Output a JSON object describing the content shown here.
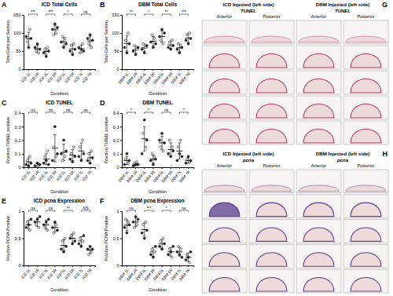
{
  "chart_data": [
    {
      "type": "dot",
      "panel_label": "A",
      "title": "ICD Total Cells",
      "y_label": "Total Cells per Section",
      "x_label": "Condition",
      "categories": [
        "ICD 1L",
        "ICD 1R",
        "ICD 3L",
        "ICD 3R",
        "ICD 5L",
        "ICD 5R",
        "ICD 7L",
        "ICD 7R"
      ],
      "values": [
        [
          90,
          75,
          60,
          110,
          85
        ],
        [
          60,
          50,
          70,
          45,
          55
        ],
        [
          45,
          55,
          35,
          60,
          50
        ],
        [
          110,
          95,
          125,
          100,
          115
        ],
        [
          75,
          90,
          60,
          85,
          70
        ],
        [
          50,
          65,
          40,
          70,
          55
        ],
        [
          60,
          45,
          55,
          70,
          50
        ],
        [
          85,
          70,
          95,
          60,
          80
        ]
      ],
      "mean": [
        84,
        56,
        49,
        109,
        76,
        56,
        56,
        78
      ],
      "sd": [
        18,
        10,
        10,
        12,
        12,
        12,
        10,
        13
      ],
      "color": "#222222",
      "marker": "circle",
      "ylim": [
        0,
        150
      ],
      "yticks": [
        0,
        50,
        100,
        150
      ],
      "annotations": [
        {
          "text": "***",
          "from": 0,
          "to": 1
        },
        {
          "text": "***",
          "from": 2,
          "to": 3
        },
        {
          "text": "*",
          "from": 4,
          "to": 5
        },
        {
          "text": "ns",
          "from": 6,
          "to": 7
        }
      ]
    },
    {
      "type": "dot",
      "panel_label": "B",
      "title": "DBM Total Cells",
      "y_label": "Total Cells per Section",
      "x_label": "Condition",
      "categories": [
        "DBM 1L",
        "DBM 1R",
        "DBM 3L",
        "DBM 3R",
        "DBM 5L",
        "DBM 5R",
        "DBM 7L",
        "DBM 7R"
      ],
      "values": [
        [
          60,
          80,
          45,
          100,
          70
        ],
        [
          50,
          65,
          40,
          55,
          60
        ],
        [
          55,
          70,
          45,
          60,
          65
        ],
        [
          75,
          95,
          60,
          85,
          70
        ],
        [
          90,
          80,
          110,
          70,
          100
        ],
        [
          60,
          75,
          55,
          80,
          65
        ],
        [
          55,
          70,
          45,
          65,
          60
        ],
        [
          80,
          95,
          70,
          100,
          85
        ]
      ],
      "mean": [
        71,
        54,
        59,
        77,
        90,
        67,
        59,
        86
      ],
      "sd": [
        21,
        10,
        10,
        13,
        16,
        10,
        10,
        12
      ],
      "color": "#222222",
      "marker": "circle",
      "ylim": [
        0,
        150
      ],
      "yticks": [
        0,
        50,
        100,
        150
      ],
      "annotations": [
        {
          "text": "**",
          "from": 0,
          "to": 1
        },
        {
          "text": "*",
          "from": 2,
          "to": 3
        },
        {
          "text": "**",
          "from": 4,
          "to": 5
        },
        {
          "text": "***",
          "from": 6,
          "to": 7
        }
      ]
    },
    {
      "type": "dot",
      "panel_label": "C",
      "title": "ICD TUNEL",
      "y_label": "Fraction TUNEL positive",
      "x_label": "Condition",
      "categories": [
        "ICD 1L",
        "ICD 1R",
        "ICD 3L",
        "ICD 3R",
        "ICD 5L",
        "ICD 5R",
        "ICD 7L",
        "ICD 7R"
      ],
      "values": [
        [
          0.02,
          0.05,
          0.01,
          0.08,
          0.03
        ],
        [
          0.01,
          0.02,
          0.03,
          0.01,
          0.02
        ],
        [
          0.03,
          0.08,
          0.05,
          0.12,
          0.02
        ],
        [
          0.05,
          0.15,
          0.3,
          0.08,
          0.1
        ],
        [
          0.1,
          0.05,
          0.2,
          0.08,
          0.12
        ],
        [
          0.06,
          0.1,
          0.04,
          0.15,
          0.08
        ],
        [
          0.08,
          0.15,
          0.05,
          0.2,
          0.1
        ],
        [
          0.05,
          0.1,
          0.03,
          0.12,
          0.07
        ]
      ],
      "mean": [
        0.04,
        0.02,
        0.06,
        0.14,
        0.11,
        0.09,
        0.12,
        0.07
      ],
      "sd": [
        0.03,
        0.01,
        0.04,
        0.1,
        0.06,
        0.04,
        0.06,
        0.04
      ],
      "color": "#222222",
      "marker": "circle",
      "ylim": [
        0,
        0.4
      ],
      "yticks": [
        0,
        0.1,
        0.2,
        0.3,
        0.4
      ],
      "annotations": [
        {
          "text": "ns",
          "from": 0,
          "to": 1
        },
        {
          "text": "ns",
          "from": 2,
          "to": 3
        },
        {
          "text": "ns",
          "from": 4,
          "to": 5
        },
        {
          "text": "ns",
          "from": 6,
          "to": 7
        }
      ]
    },
    {
      "type": "dot",
      "panel_label": "D",
      "title": "DBM TUNEL",
      "y_label": "Fraction TUNEL positive",
      "x_label": "Condition",
      "categories": [
        "DBM 1L",
        "DBM 1R",
        "DBM 3L",
        "DBM 3R",
        "DBM 5L",
        "DBM 5R",
        "DBM 7L",
        "DBM 7R"
      ],
      "values": [
        [
          0.02,
          0.06,
          0.1,
          0.03,
          0.05
        ],
        [
          0.01,
          0.03,
          0.02,
          0.04,
          0.02
        ],
        [
          0.1,
          0.25,
          0.35,
          0.15,
          0.2
        ],
        [
          0.05,
          0.1,
          0.02,
          0.08,
          0.06
        ],
        [
          0.2,
          0.15,
          0.25,
          0.12,
          0.18
        ],
        [
          0.1,
          0.2,
          0.08,
          0.15,
          0.12
        ],
        [
          0.05,
          0.15,
          0.1,
          0.2,
          0.08
        ],
        [
          0.03,
          0.06,
          0.08,
          0.04,
          0.05
        ]
      ],
      "mean": [
        0.05,
        0.02,
        0.21,
        0.06,
        0.18,
        0.13,
        0.12,
        0.05
      ],
      "sd": [
        0.03,
        0.01,
        0.09,
        0.03,
        0.05,
        0.05,
        0.06,
        0.02
      ],
      "color": "#222222",
      "marker": "circle",
      "ylim": [
        0,
        0.4
      ],
      "yticks": [
        0,
        0.1,
        0.2,
        0.3,
        0.4
      ],
      "annotations": [
        {
          "text": "*",
          "from": 0,
          "to": 1
        },
        {
          "text": "*",
          "from": 2,
          "to": 3
        },
        {
          "text": "ns",
          "from": 4,
          "to": 5
        },
        {
          "text": "*",
          "from": 6,
          "to": 7
        }
      ]
    },
    {
      "type": "dot",
      "panel_label": "E",
      "title": "ICD pcna Expression",
      "y_label": "Fraction PCNA Positive",
      "x_label": "Condition",
      "categories": [
        "ICD 1L",
        "ICD 1R",
        "ICD 3L",
        "ICD 3R",
        "ICD 5L",
        "ICD 5R",
        "ICD 7L",
        "ICD 7R"
      ],
      "values": [
        [
          0.7,
          0.8,
          0.75,
          0.65,
          0.85
        ],
        [
          0.8,
          0.75,
          0.85,
          0.7,
          0.9
        ],
        [
          0.75,
          0.7,
          0.8,
          0.65,
          0.85
        ],
        [
          0.7,
          0.6,
          0.8,
          0.75,
          0.65
        ],
        [
          0.3,
          0.45,
          0.25,
          0.5,
          0.35
        ],
        [
          0.5,
          0.55,
          0.4,
          0.6,
          0.45
        ],
        [
          0.4,
          0.5,
          0.35,
          0.45,
          0.55
        ],
        [
          0.3,
          0.2,
          0.35,
          0.25,
          0.3
        ]
      ],
      "mean": [
        0.75,
        0.8,
        0.75,
        0.7,
        0.37,
        0.5,
        0.45,
        0.28
      ],
      "sd": [
        0.08,
        0.08,
        0.08,
        0.08,
        0.1,
        0.08,
        0.08,
        0.06
      ],
      "color": "#222222",
      "marker": "circle",
      "ylim": [
        0,
        1
      ],
      "yticks": [
        0,
        0.5,
        1
      ],
      "annotations": [
        {
          "text": "ns",
          "from": 0,
          "to": 1
        },
        {
          "text": "ns",
          "from": 2,
          "to": 3
        },
        {
          "text": "**",
          "from": 4,
          "to": 5
        },
        {
          "text": "NS",
          "from": 6,
          "to": 7
        }
      ]
    },
    {
      "type": "dot",
      "panel_label": "F",
      "title": "DBM pcna Expression",
      "y_label": "Fraction PCNA Positive",
      "x_label": "Condition",
      "categories": [
        "DBM 1L",
        "DBM 1R",
        "DBM 3L",
        "DBM 3R",
        "DBM 5L",
        "DBM 5R",
        "DBM 7L",
        "DBM 7R"
      ],
      "values": [
        [
          0.7,
          0.85,
          0.6,
          0.8,
          0.75
        ],
        [
          0.8,
          0.7,
          0.9,
          0.75,
          0.85
        ],
        [
          0.6,
          0.75,
          0.5,
          0.8,
          0.65
        ],
        [
          0.2,
          0.3,
          0.15,
          0.25,
          0.35
        ],
        [
          0.35,
          0.45,
          0.3,
          0.5,
          0.4
        ],
        [
          0.2,
          0.3,
          0.25,
          0.15,
          0.35
        ],
        [
          0.25,
          0.35,
          0.2,
          0.3,
          0.15
        ],
        [
          0.1,
          0.2,
          0.15,
          0.05,
          0.25
        ]
      ],
      "mean": [
        0.74,
        0.8,
        0.66,
        0.25,
        0.4,
        0.25,
        0.25,
        0.15
      ],
      "sd": [
        0.1,
        0.08,
        0.12,
        0.08,
        0.08,
        0.08,
        0.08,
        0.08
      ],
      "color": "#222222",
      "marker": "circle",
      "ylim": [
        0,
        1
      ],
      "yticks": [
        0,
        0.5,
        1
      ],
      "annotations": [
        {
          "text": "ns",
          "from": 0,
          "to": 1
        },
        {
          "text": "***",
          "from": 2,
          "to": 3
        },
        {
          "text": "*",
          "from": 4,
          "to": 5
        },
        {
          "text": "ns",
          "from": 6,
          "to": 7
        }
      ]
    }
  ],
  "figure": {
    "image_panels": [
      {
        "panel_label": "G",
        "stain": "TUNEL",
        "color": "#b03a5b",
        "columns": [
          "ICD Injected (left side)",
          "DBM Injected (left side)"
        ],
        "subcolumns": [
          "Anterior",
          "Posterior"
        ],
        "rows": 5
      },
      {
        "panel_label": "H",
        "stain": "pcna",
        "color": "#5a3c8c",
        "columns": [
          "ICD Injected (left side)",
          "DBM Injected (left side)"
        ],
        "subcolumns": [
          "Anterior",
          "Posterior"
        ],
        "rows": 5
      }
    ]
  }
}
